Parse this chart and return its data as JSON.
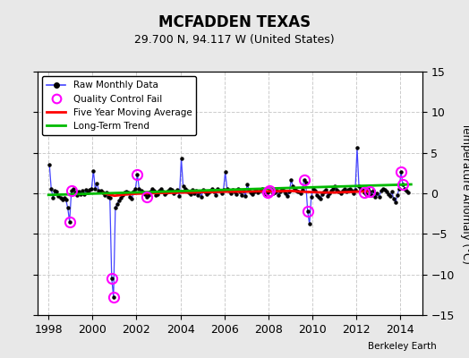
{
  "title": "MCFADDEN TEXAS",
  "subtitle": "29.700 N, 94.117 W (United States)",
  "ylabel": "Temperature Anomaly (°C)",
  "credit": "Berkeley Earth",
  "xlim": [
    1997.5,
    2015.0
  ],
  "ylim": [
    -15,
    15
  ],
  "yticks": [
    -15,
    -10,
    -5,
    0,
    5,
    10,
    15
  ],
  "xticks": [
    1998,
    2000,
    2002,
    2004,
    2006,
    2008,
    2010,
    2012,
    2014
  ],
  "plot_bg": "#ffffff",
  "fig_bg": "#e8e8e8",
  "raw_line_color": "#4444ff",
  "dot_color": "#000000",
  "qc_color": "#ff00ff",
  "moving_avg_color": "#ff0000",
  "trend_color": "#00bb00",
  "grid_color": "#cccccc",
  "raw_data": [
    [
      1998.042,
      3.5
    ],
    [
      1998.125,
      0.5
    ],
    [
      1998.208,
      -0.5
    ],
    [
      1998.292,
      0.3
    ],
    [
      1998.375,
      0.2
    ],
    [
      1998.458,
      -0.3
    ],
    [
      1998.542,
      -0.6
    ],
    [
      1998.625,
      -0.8
    ],
    [
      1998.708,
      -0.5
    ],
    [
      1998.792,
      -0.8
    ],
    [
      1998.875,
      -1.8
    ],
    [
      1998.958,
      -3.5
    ],
    [
      1999.042,
      0.3
    ],
    [
      1999.125,
      0.5
    ],
    [
      1999.208,
      0.1
    ],
    [
      1999.292,
      -0.2
    ],
    [
      1999.375,
      0.2
    ],
    [
      1999.458,
      -0.1
    ],
    [
      1999.542,
      0.3
    ],
    [
      1999.625,
      -0.1
    ],
    [
      1999.708,
      0.4
    ],
    [
      1999.792,
      0.1
    ],
    [
      1999.875,
      0.4
    ],
    [
      1999.958,
      0.5
    ],
    [
      2000.042,
      2.8
    ],
    [
      2000.125,
      0.6
    ],
    [
      2000.208,
      1.2
    ],
    [
      2000.292,
      0.3
    ],
    [
      2000.375,
      0.3
    ],
    [
      2000.458,
      0.1
    ],
    [
      2000.542,
      -0.2
    ],
    [
      2000.625,
      0.1
    ],
    [
      2000.708,
      -0.4
    ],
    [
      2000.792,
      -0.6
    ],
    [
      2000.875,
      -10.5
    ],
    [
      2000.958,
      -12.8
    ],
    [
      2001.042,
      -1.8
    ],
    [
      2001.125,
      -1.3
    ],
    [
      2001.208,
      -0.9
    ],
    [
      2001.292,
      -0.5
    ],
    [
      2001.375,
      -0.2
    ],
    [
      2001.458,
      0.1
    ],
    [
      2001.542,
      0.2
    ],
    [
      2001.625,
      0.1
    ],
    [
      2001.708,
      -0.4
    ],
    [
      2001.792,
      -0.7
    ],
    [
      2001.875,
      0.2
    ],
    [
      2001.958,
      0.6
    ],
    [
      2002.042,
      2.3
    ],
    [
      2002.125,
      0.6
    ],
    [
      2002.208,
      0.3
    ],
    [
      2002.292,
      0.1
    ],
    [
      2002.375,
      -0.1
    ],
    [
      2002.458,
      -0.4
    ],
    [
      2002.542,
      -0.2
    ],
    [
      2002.625,
      0.2
    ],
    [
      2002.708,
      0.5
    ],
    [
      2002.792,
      0.3
    ],
    [
      2002.875,
      -0.2
    ],
    [
      2002.958,
      -0.1
    ],
    [
      2003.042,
      0.3
    ],
    [
      2003.125,
      0.5
    ],
    [
      2003.208,
      0.2
    ],
    [
      2003.292,
      -0.1
    ],
    [
      2003.375,
      0.1
    ],
    [
      2003.458,
      0.3
    ],
    [
      2003.542,
      0.6
    ],
    [
      2003.625,
      0.4
    ],
    [
      2003.708,
      0.0
    ],
    [
      2003.792,
      0.2
    ],
    [
      2003.875,
      0.4
    ],
    [
      2003.958,
      -0.3
    ],
    [
      2004.042,
      4.3
    ],
    [
      2004.125,
      0.9
    ],
    [
      2004.208,
      0.6
    ],
    [
      2004.292,
      0.3
    ],
    [
      2004.375,
      0.1
    ],
    [
      2004.458,
      -0.1
    ],
    [
      2004.542,
      0.4
    ],
    [
      2004.625,
      0.0
    ],
    [
      2004.708,
      0.3
    ],
    [
      2004.792,
      -0.2
    ],
    [
      2004.875,
      0.2
    ],
    [
      2004.958,
      -0.4
    ],
    [
      2005.042,
      0.4
    ],
    [
      2005.125,
      0.2
    ],
    [
      2005.208,
      -0.1
    ],
    [
      2005.292,
      0.1
    ],
    [
      2005.375,
      0.3
    ],
    [
      2005.458,
      0.5
    ],
    [
      2005.542,
      0.2
    ],
    [
      2005.625,
      -0.2
    ],
    [
      2005.708,
      0.6
    ],
    [
      2005.792,
      0.3
    ],
    [
      2005.875,
      0.0
    ],
    [
      2005.958,
      0.4
    ],
    [
      2006.042,
      2.6
    ],
    [
      2006.125,
      0.6
    ],
    [
      2006.208,
      0.3
    ],
    [
      2006.292,
      0.0
    ],
    [
      2006.375,
      0.4
    ],
    [
      2006.458,
      0.2
    ],
    [
      2006.542,
      -0.1
    ],
    [
      2006.625,
      0.5
    ],
    [
      2006.708,
      0.2
    ],
    [
      2006.792,
      -0.2
    ],
    [
      2006.875,
      0.3
    ],
    [
      2006.958,
      -0.3
    ],
    [
      2007.042,
      1.1
    ],
    [
      2007.125,
      0.4
    ],
    [
      2007.208,
      0.1
    ],
    [
      2007.292,
      -0.1
    ],
    [
      2007.375,
      0.2
    ],
    [
      2007.458,
      0.4
    ],
    [
      2007.542,
      0.1
    ],
    [
      2007.625,
      0.3
    ],
    [
      2007.708,
      0.6
    ],
    [
      2007.792,
      0.2
    ],
    [
      2007.875,
      -0.1
    ],
    [
      2007.958,
      0.1
    ],
    [
      2008.042,
      0.3
    ],
    [
      2008.125,
      0.4
    ],
    [
      2008.208,
      0.0
    ],
    [
      2008.292,
      0.1
    ],
    [
      2008.375,
      0.3
    ],
    [
      2008.458,
      -0.2
    ],
    [
      2008.542,
      0.2
    ],
    [
      2008.625,
      0.6
    ],
    [
      2008.708,
      0.3
    ],
    [
      2008.792,
      0.0
    ],
    [
      2008.875,
      -0.3
    ],
    [
      2008.958,
      0.2
    ],
    [
      2009.042,
      1.6
    ],
    [
      2009.125,
      0.9
    ],
    [
      2009.208,
      0.5
    ],
    [
      2009.292,
      0.3
    ],
    [
      2009.375,
      0.2
    ],
    [
      2009.458,
      0.0
    ],
    [
      2009.542,
      0.4
    ],
    [
      2009.625,
      1.6
    ],
    [
      2009.708,
      1.3
    ],
    [
      2009.792,
      -2.2
    ],
    [
      2009.875,
      -3.8
    ],
    [
      2009.958,
      -0.4
    ],
    [
      2010.042,
      0.6
    ],
    [
      2010.125,
      0.3
    ],
    [
      2010.208,
      -0.2
    ],
    [
      2010.292,
      -0.4
    ],
    [
      2010.375,
      -0.7
    ],
    [
      2010.458,
      -0.1
    ],
    [
      2010.542,
      0.2
    ],
    [
      2010.625,
      0.4
    ],
    [
      2010.708,
      -0.3
    ],
    [
      2010.792,
      0.0
    ],
    [
      2010.875,
      0.3
    ],
    [
      2010.958,
      0.6
    ],
    [
      2011.042,
      0.9
    ],
    [
      2011.125,
      0.4
    ],
    [
      2011.208,
      0.2
    ],
    [
      2011.292,
      0.0
    ],
    [
      2011.375,
      0.3
    ],
    [
      2011.458,
      0.5
    ],
    [
      2011.542,
      0.2
    ],
    [
      2011.625,
      0.4
    ],
    [
      2011.708,
      0.6
    ],
    [
      2011.792,
      0.3
    ],
    [
      2011.875,
      0.0
    ],
    [
      2011.958,
      0.4
    ],
    [
      2012.042,
      5.6
    ],
    [
      2012.125,
      0.9
    ],
    [
      2012.208,
      0.6
    ],
    [
      2012.292,
      0.4
    ],
    [
      2012.375,
      0.1
    ],
    [
      2012.458,
      -0.1
    ],
    [
      2012.542,
      0.5
    ],
    [
      2012.625,
      0.2
    ],
    [
      2012.708,
      -0.2
    ],
    [
      2012.792,
      0.3
    ],
    [
      2012.875,
      -0.4
    ],
    [
      2012.958,
      0.0
    ],
    [
      2013.042,
      -0.4
    ],
    [
      2013.125,
      0.3
    ],
    [
      2013.208,
      0.6
    ],
    [
      2013.292,
      0.4
    ],
    [
      2013.375,
      0.2
    ],
    [
      2013.458,
      -0.1
    ],
    [
      2013.542,
      -0.3
    ],
    [
      2013.625,
      0.2
    ],
    [
      2013.708,
      -0.7
    ],
    [
      2013.792,
      -1.1
    ],
    [
      2013.875,
      -0.2
    ],
    [
      2013.958,
      0.6
    ],
    [
      2014.042,
      2.6
    ],
    [
      2014.125,
      1.1
    ],
    [
      2014.208,
      0.6
    ],
    [
      2014.292,
      0.3
    ],
    [
      2014.375,
      0.1
    ]
  ],
  "qc_fail_points": [
    [
      1998.958,
      -3.5
    ],
    [
      1999.042,
      0.3
    ],
    [
      2000.875,
      -10.5
    ],
    [
      2000.958,
      -12.8
    ],
    [
      2002.042,
      2.3
    ],
    [
      2002.458,
      -0.4
    ],
    [
      2007.958,
      0.1
    ],
    [
      2008.042,
      0.3
    ],
    [
      2009.625,
      1.6
    ],
    [
      2009.792,
      -2.2
    ],
    [
      2012.375,
      0.1
    ],
    [
      2012.625,
      0.2
    ],
    [
      2014.042,
      2.6
    ],
    [
      2014.125,
      1.1
    ]
  ],
  "moving_avg": [
    [
      2000.5,
      0.0
    ],
    [
      2001.0,
      -0.3
    ],
    [
      2001.5,
      -0.15
    ],
    [
      2002.0,
      -0.05
    ],
    [
      2002.5,
      0.0
    ],
    [
      2003.0,
      0.05
    ],
    [
      2003.5,
      0.05
    ],
    [
      2004.0,
      0.1
    ],
    [
      2004.5,
      0.1
    ],
    [
      2005.0,
      0.15
    ],
    [
      2005.5,
      0.15
    ],
    [
      2006.0,
      0.2
    ],
    [
      2006.5,
      0.2
    ],
    [
      2007.0,
      0.2
    ],
    [
      2007.5,
      0.25
    ],
    [
      2008.0,
      0.25
    ],
    [
      2008.5,
      0.25
    ],
    [
      2009.0,
      0.3
    ],
    [
      2009.5,
      0.2
    ],
    [
      2010.0,
      0.15
    ],
    [
      2010.5,
      0.1
    ],
    [
      2011.0,
      0.1
    ],
    [
      2011.5,
      0.15
    ],
    [
      2012.0,
      0.2
    ],
    [
      2012.5,
      0.25
    ]
  ],
  "trend_x": [
    1998.0,
    2014.5
  ],
  "trend_y": [
    -0.2,
    1.1
  ]
}
